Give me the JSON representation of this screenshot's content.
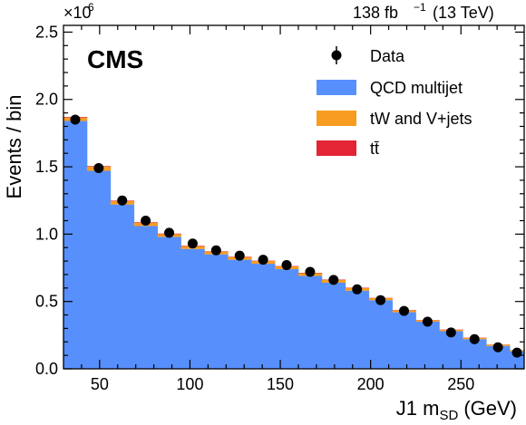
{
  "chart_data": {
    "type": "bar",
    "stacked": true,
    "header_left": "×10",
    "header_left_exp": "6",
    "header_right_lumi": "138 fb",
    "header_right_exp": "−1",
    "header_right_energy": "(13 TeV)",
    "cms_label": "CMS",
    "ylabel": "Events / bin",
    "xlabel_main": "J1 m",
    "xlabel_sub": "SD",
    "xlabel_unit": "(GeV)",
    "xlim": [
      30,
      285
    ],
    "ylim": [
      0,
      2.55
    ],
    "x_ticks": [
      "50",
      "100",
      "150",
      "200",
      "250"
    ],
    "y_ticks": [
      "0.0",
      "0.5",
      "1.0",
      "1.5",
      "2.0",
      "2.5"
    ],
    "bin_edges": [
      30,
      43,
      56,
      69,
      82,
      95,
      108,
      121,
      134,
      147,
      160,
      173,
      186,
      199,
      212,
      225,
      238,
      251,
      264,
      277,
      285
    ],
    "series": [
      {
        "name": "QCD multijet",
        "color": "#5790fc",
        "values": [
          1.84,
          1.47,
          1.22,
          1.06,
          0.98,
          0.89,
          0.85,
          0.81,
          0.78,
          0.74,
          0.69,
          0.64,
          0.58,
          0.51,
          0.42,
          0.35,
          0.28,
          0.22,
          0.17,
          0.13
        ]
      },
      {
        "name": "tW and V+jets",
        "color": "#f89c20",
        "values": [
          0.025,
          0.03,
          0.025,
          0.025,
          0.02,
          0.02,
          0.02,
          0.02,
          0.02,
          0.02,
          0.02,
          0.02,
          0.02,
          0.015,
          0.015,
          0.01,
          0.01,
          0.01,
          0.01,
          0.008
        ]
      },
      {
        "name": "tt̄",
        "color": "#e42536",
        "values": [
          0.005,
          0.005,
          0.004,
          0.004,
          0.004,
          0.004,
          0.003,
          0.003,
          0.003,
          0.003,
          0.003,
          0.003,
          0.003,
          0.002,
          0.002,
          0.002,
          0.002,
          0.002,
          0.001,
          0.001
        ]
      }
    ],
    "data_series": {
      "name": "Data",
      "x": [
        36.5,
        49.5,
        62.5,
        75.5,
        88.5,
        101.5,
        114.5,
        127.5,
        140.5,
        153.5,
        166.5,
        179.5,
        192.5,
        205.5,
        218.5,
        231.5,
        244.5,
        257.5,
        270.5,
        281
      ],
      "y": [
        1.85,
        1.49,
        1.25,
        1.1,
        1.01,
        0.93,
        0.88,
        0.84,
        0.81,
        0.77,
        0.72,
        0.66,
        0.59,
        0.51,
        0.43,
        0.35,
        0.27,
        0.22,
        0.16,
        0.12
      ]
    },
    "legend": {
      "position": "top-right",
      "entries": [
        {
          "label": "Data",
          "kind": "marker"
        },
        {
          "label": "QCD multijet",
          "kind": "patch",
          "color": "#5790fc"
        },
        {
          "label": "tW and V+jets",
          "kind": "patch",
          "color": "#f89c20"
        },
        {
          "label": "tt̄",
          "kind": "patch",
          "color": "#e42536"
        }
      ]
    }
  }
}
